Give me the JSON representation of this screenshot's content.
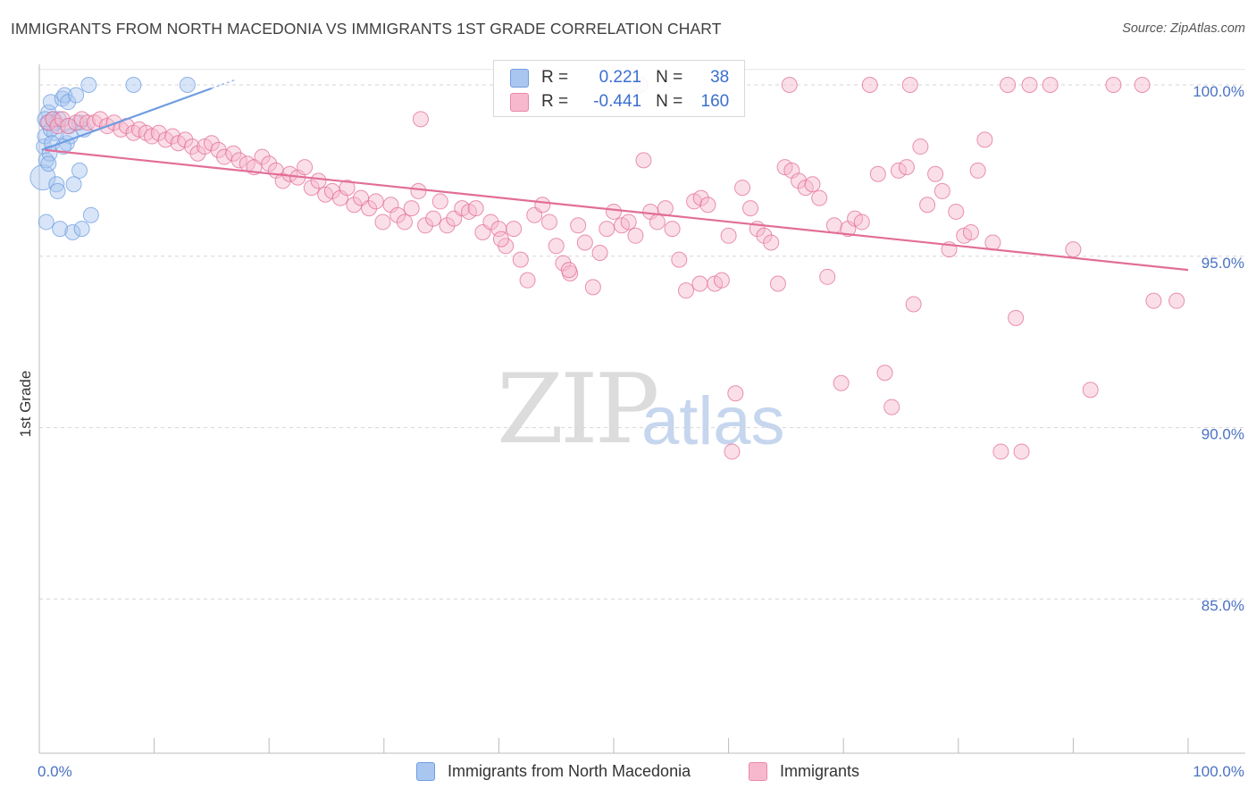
{
  "header": {
    "title": "IMMIGRANTS FROM NORTH MACEDONIA VS IMMIGRANTS 1ST GRADE CORRELATION CHART",
    "source": "Source: ZipAtlas.com"
  },
  "watermark": {
    "zip": "ZIP",
    "atlas": "atlas"
  },
  "legend": {
    "rows": [
      {
        "r_label": "R =",
        "r_value": "0.221",
        "n_label": "N =",
        "n_value": "38",
        "color": "#a9c6f0",
        "border": "#6f9de0"
      },
      {
        "r_label": "R =",
        "r_value": "-0.441",
        "n_label": "N =",
        "n_value": "160",
        "color": "#f7b8cd",
        "border": "#e889a9"
      }
    ]
  },
  "bottom_legend": [
    {
      "label": "Immigrants from North Macedonia",
      "color": "#a9c6f0"
    },
    {
      "label": "Immigrants",
      "color": "#f7b8cd"
    }
  ],
  "chart_data": {
    "type": "scatter",
    "title": "IMMIGRANTS FROM NORTH MACEDONIA VS IMMIGRANTS 1ST GRADE CORRELATION CHART",
    "xlabel": "",
    "ylabel": "1st Grade",
    "xlim": [
      0,
      100
    ],
    "ylim": [
      80.5,
      100.6
    ],
    "x_tick_labels": [
      "0.0%",
      "100.0%"
    ],
    "y_ticks": [
      {
        "value": 100,
        "label": "100.0%"
      },
      {
        "value": 95,
        "label": "95.0%"
      },
      {
        "value": 90,
        "label": "90.0%"
      },
      {
        "value": 85,
        "label": "85.0%"
      }
    ],
    "grid": "horizontal dashed",
    "legend_position": "top-center",
    "series": [
      {
        "name": "Immigrants from North Macedonia",
        "color": "#6f9de0",
        "fill": "#a9c6f0",
        "trend": {
          "x": [
            0.2,
            15
          ],
          "y": [
            98.1,
            99.9
          ]
        },
        "points": [
          [
            0.3,
            97.3
          ],
          [
            0.4,
            98.2
          ],
          [
            0.5,
            98.5
          ],
          [
            0.6,
            97.8
          ],
          [
            0.7,
            98.9
          ],
          [
            0.8,
            99.2
          ],
          [
            0.9,
            98.0
          ],
          [
            1.0,
            99.5
          ],
          [
            1.2,
            99.0
          ],
          [
            1.3,
            98.6
          ],
          [
            1.4,
            98.9
          ],
          [
            1.5,
            97.1
          ],
          [
            1.6,
            96.9
          ],
          [
            1.8,
            95.8
          ],
          [
            2.0,
            99.6
          ],
          [
            2.2,
            99.7
          ],
          [
            2.4,
            98.3
          ],
          [
            2.5,
            99.5
          ],
          [
            2.6,
            98.8
          ],
          [
            2.7,
            98.5
          ],
          [
            2.9,
            95.7
          ],
          [
            3.0,
            97.1
          ],
          [
            3.2,
            99.7
          ],
          [
            3.5,
            98.9
          ],
          [
            3.7,
            95.8
          ],
          [
            3.5,
            97.5
          ],
          [
            4.5,
            96.2
          ],
          [
            4.3,
            100.0
          ],
          [
            8.2,
            100.0
          ],
          [
            12.9,
            100.0
          ],
          [
            1.0,
            98.7
          ],
          [
            1.1,
            98.3
          ],
          [
            0.8,
            97.7
          ],
          [
            2.1,
            98.2
          ],
          [
            1.7,
            99.0
          ],
          [
            0.6,
            96.0
          ],
          [
            3.9,
            98.7
          ],
          [
            0.5,
            99.0
          ]
        ]
      },
      {
        "name": "Immigrants",
        "color": "#e26e98",
        "fill": "#f7b8cd",
        "trend": {
          "x": [
            0.5,
            100
          ],
          "y": [
            98.1,
            94.6
          ]
        },
        "points": [
          [
            0.8,
            98.9
          ],
          [
            1.2,
            99.0
          ],
          [
            1.6,
            98.8
          ],
          [
            2.0,
            99.0
          ],
          [
            2.5,
            98.8
          ],
          [
            3.2,
            98.9
          ],
          [
            3.7,
            99.0
          ],
          [
            4.2,
            98.9
          ],
          [
            4.8,
            98.9
          ],
          [
            5.3,
            99.0
          ],
          [
            5.9,
            98.8
          ],
          [
            6.5,
            98.9
          ],
          [
            7.1,
            98.7
          ],
          [
            7.6,
            98.8
          ],
          [
            8.2,
            98.6
          ],
          [
            8.7,
            98.7
          ],
          [
            9.3,
            98.6
          ],
          [
            9.8,
            98.5
          ],
          [
            10.4,
            98.6
          ],
          [
            11.0,
            98.4
          ],
          [
            11.6,
            98.5
          ],
          [
            12.1,
            98.3
          ],
          [
            12.7,
            98.4
          ],
          [
            13.3,
            98.2
          ],
          [
            13.8,
            98.0
          ],
          [
            14.4,
            98.2
          ],
          [
            15.0,
            98.3
          ],
          [
            15.6,
            98.1
          ],
          [
            16.1,
            97.9
          ],
          [
            16.9,
            98.0
          ],
          [
            17.4,
            97.8
          ],
          [
            18.1,
            97.7
          ],
          [
            18.7,
            97.6
          ],
          [
            19.4,
            97.9
          ],
          [
            20.0,
            97.7
          ],
          [
            20.6,
            97.5
          ],
          [
            21.2,
            97.2
          ],
          [
            21.8,
            97.4
          ],
          [
            22.5,
            97.3
          ],
          [
            23.1,
            97.6
          ],
          [
            23.7,
            97.0
          ],
          [
            24.3,
            97.2
          ],
          [
            24.9,
            96.8
          ],
          [
            25.5,
            96.9
          ],
          [
            26.2,
            96.7
          ],
          [
            26.8,
            97.0
          ],
          [
            27.4,
            96.5
          ],
          [
            28.0,
            96.7
          ],
          [
            28.7,
            96.4
          ],
          [
            29.3,
            96.6
          ],
          [
            29.9,
            96.0
          ],
          [
            30.6,
            96.5
          ],
          [
            31.2,
            96.2
          ],
          [
            31.8,
            96.0
          ],
          [
            32.4,
            96.4
          ],
          [
            33.0,
            96.9
          ],
          [
            33.6,
            95.9
          ],
          [
            34.3,
            96.1
          ],
          [
            34.9,
            96.6
          ],
          [
            35.5,
            95.9
          ],
          [
            36.1,
            96.1
          ],
          [
            36.8,
            96.4
          ],
          [
            37.4,
            96.3
          ],
          [
            38.0,
            96.4
          ],
          [
            38.6,
            95.7
          ],
          [
            39.3,
            96.0
          ],
          [
            40.0,
            95.8
          ],
          [
            40.6,
            95.3
          ],
          [
            41.3,
            95.8
          ],
          [
            41.9,
            94.9
          ],
          [
            42.5,
            94.3
          ],
          [
            43.1,
            96.2
          ],
          [
            43.8,
            96.5
          ],
          [
            44.4,
            96.0
          ],
          [
            45.0,
            95.3
          ],
          [
            45.6,
            94.8
          ],
          [
            46.2,
            94.5
          ],
          [
            46.9,
            95.9
          ],
          [
            47.5,
            95.4
          ],
          [
            48.2,
            94.1
          ],
          [
            48.8,
            95.1
          ],
          [
            49.4,
            95.8
          ],
          [
            50.0,
            96.3
          ],
          [
            50.7,
            95.9
          ],
          [
            51.3,
            96.0
          ],
          [
            51.9,
            95.6
          ],
          [
            52.6,
            97.8
          ],
          [
            53.2,
            96.3
          ],
          [
            53.8,
            96.0
          ],
          [
            54.5,
            96.4
          ],
          [
            55.1,
            95.8
          ],
          [
            55.7,
            94.9
          ],
          [
            56.3,
            94.0
          ],
          [
            57.0,
            96.6
          ],
          [
            57.6,
            96.7
          ],
          [
            58.2,
            96.5
          ],
          [
            58.8,
            94.2
          ],
          [
            59.4,
            94.3
          ],
          [
            60.0,
            95.6
          ],
          [
            60.6,
            91.0
          ],
          [
            61.2,
            97.0
          ],
          [
            61.9,
            96.4
          ],
          [
            62.5,
            95.8
          ],
          [
            63.1,
            95.6
          ],
          [
            63.7,
            95.4
          ],
          [
            64.3,
            94.2
          ],
          [
            64.9,
            97.6
          ],
          [
            65.5,
            97.5
          ],
          [
            66.1,
            97.2
          ],
          [
            66.7,
            97.0
          ],
          [
            67.3,
            97.1
          ],
          [
            67.9,
            96.7
          ],
          [
            68.6,
            94.4
          ],
          [
            69.2,
            95.9
          ],
          [
            69.8,
            91.3
          ],
          [
            70.4,
            95.8
          ],
          [
            71.0,
            96.1
          ],
          [
            71.6,
            96.0
          ],
          [
            72.3,
            100.0
          ],
          [
            73.0,
            97.4
          ],
          [
            73.6,
            91.6
          ],
          [
            74.2,
            90.6
          ],
          [
            74.8,
            97.5
          ],
          [
            75.5,
            97.6
          ],
          [
            76.1,
            93.6
          ],
          [
            76.7,
            98.2
          ],
          [
            77.3,
            96.5
          ],
          [
            78.0,
            97.4
          ],
          [
            78.6,
            96.9
          ],
          [
            79.2,
            95.2
          ],
          [
            79.8,
            96.3
          ],
          [
            80.5,
            95.6
          ],
          [
            81.1,
            95.7
          ],
          [
            81.7,
            97.5
          ],
          [
            82.3,
            98.4
          ],
          [
            83.0,
            95.4
          ],
          [
            83.7,
            89.3
          ],
          [
            84.3,
            100.0
          ],
          [
            85.0,
            93.2
          ],
          [
            86.2,
            100.0
          ],
          [
            88.0,
            100.0
          ],
          [
            90.0,
            95.2
          ],
          [
            91.5,
            91.1
          ],
          [
            93.5,
            100.0
          ],
          [
            96.0,
            100.0
          ],
          [
            97.0,
            93.7
          ],
          [
            99.0,
            93.7
          ],
          [
            60.3,
            89.3
          ],
          [
            57.5,
            94.2
          ],
          [
            46.1,
            94.6
          ],
          [
            52.3,
            100.0
          ],
          [
            85.5,
            89.3
          ],
          [
            40.2,
            95.5
          ],
          [
            65.3,
            100.0
          ],
          [
            75.8,
            100.0
          ],
          [
            33.2,
            99.0
          ]
        ]
      }
    ]
  }
}
